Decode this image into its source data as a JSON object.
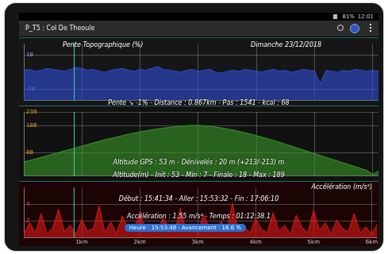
{
  "screen": {
    "battery": "81%",
    "time": "12:01",
    "app_title": "P_T5 : Col De Theoule"
  },
  "cursor": {
    "x": 0.867,
    "label": "Heure : 15:53:48 - Avancement : 16.6 %"
  },
  "chart_data": [
    {
      "type": "area",
      "title": "Pente Topographique (%)",
      "subtitle": "Dimanche 23/12/2018",
      "annotations": [
        "Pente ↘ -1% - Distance : 0.867km - Pas : 1541 - kcal : 68"
      ],
      "x": [
        0,
        0.1,
        0.2,
        0.3,
        0.4,
        0.5,
        0.6,
        0.7,
        0.8,
        0.9,
        1,
        1.1,
        1.2,
        1.3,
        1.4,
        1.5,
        1.6,
        1.7,
        1.8,
        1.9,
        2,
        2.1,
        2.2,
        2.3,
        2.4,
        2.5,
        2.6,
        2.7,
        2.8,
        2.9,
        3,
        3.1,
        3.2,
        3.3,
        3.4,
        3.5,
        3.6,
        3.7,
        3.8,
        3.9,
        4,
        4.1,
        4.2,
        4.3,
        4.4,
        4.5,
        4.6,
        4.7,
        4.8,
        4.9,
        5,
        5.1,
        5.2,
        5.3,
        5.4,
        5.5,
        5.6,
        5.7,
        5.8,
        5.9,
        6,
        6.1
      ],
      "values": [
        2,
        3,
        1,
        2,
        4,
        3,
        2,
        1,
        3,
        5,
        4,
        2,
        3,
        1,
        0,
        2,
        3,
        4,
        2,
        1,
        3,
        2,
        4,
        6,
        3,
        2,
        1,
        0,
        2,
        3,
        1,
        2,
        3,
        0,
        -1,
        1,
        2,
        1,
        3,
        2,
        1,
        0,
        2,
        3,
        1,
        2,
        0,
        1,
        3,
        2,
        1,
        -12,
        2,
        1,
        0,
        2,
        1,
        3,
        2,
        1,
        2,
        1
      ],
      "color": "#2f4fd8",
      "xlim": [
        0,
        6.1
      ],
      "xticks": [
        {
          "value": 1,
          "label": "1km"
        },
        {
          "value": 2,
          "label": "2km"
        },
        {
          "value": 3,
          "label": "3km"
        },
        {
          "value": 4,
          "label": "4km"
        },
        {
          "value": 5,
          "label": "5km"
        },
        {
          "value": 6,
          "label": "6km"
        }
      ],
      "ylim": [
        -30,
        30
      ],
      "yticks": [
        -18,
        18
      ],
      "grid": true,
      "tick_labels": "y"
    },
    {
      "type": "area",
      "annotations": [
        "Altitude GPS : 53 m - Dénivelés : 20 m (+213/-213) m",
        "Altitude(m) - Init : 53 - Min : 7 - Finale : 18 - Max : 189"
      ],
      "x": [
        0,
        0.1,
        0.2,
        0.3,
        0.4,
        0.5,
        0.6,
        0.7,
        0.8,
        0.9,
        1,
        1.1,
        1.2,
        1.3,
        1.4,
        1.5,
        1.6,
        1.7,
        1.8,
        1.9,
        2,
        2.1,
        2.2,
        2.3,
        2.4,
        2.5,
        2.6,
        2.7,
        2.8,
        2.9,
        3,
        3.1,
        3.2,
        3.3,
        3.4,
        3.5,
        3.6,
        3.7,
        3.8,
        3.9,
        4,
        4.1,
        4.2,
        4.3,
        4.4,
        4.5,
        4.6,
        4.7,
        4.8,
        4.9,
        5,
        5.1,
        5.2,
        5.3,
        5.4,
        5.5,
        5.6,
        5.7,
        5.8,
        5.9,
        6,
        6.1
      ],
      "values": [
        53,
        58,
        64,
        70,
        76,
        82,
        88,
        94,
        100,
        106,
        112,
        118,
        124,
        130,
        136,
        141,
        146,
        151,
        156,
        161,
        165,
        169,
        173,
        176,
        179,
        182,
        184,
        186,
        188,
        189,
        189,
        188,
        186,
        183,
        180,
        176,
        172,
        167,
        162,
        157,
        151,
        145,
        139,
        133,
        126,
        119,
        112,
        105,
        98,
        91,
        84,
        77,
        70,
        63,
        56,
        49,
        42,
        35,
        28,
        21,
        7,
        18
      ],
      "color": "#3a9a28",
      "xlim": [
        0,
        6.1
      ],
      "xticks": [
        {
          "value": 1,
          "label": "1km"
        },
        {
          "value": 2,
          "label": "2km"
        },
        {
          "value": 3,
          "label": "3km"
        },
        {
          "value": 4,
          "label": "4km"
        },
        {
          "value": 5,
          "label": "5km"
        },
        {
          "value": 6,
          "label": "6km"
        }
      ],
      "ylim": [
        0,
        239
      ],
      "yticks": [
        88,
        188,
        239
      ],
      "grid": true,
      "tick_labels": "y"
    },
    {
      "type": "area",
      "title": "Accélération (m/s²)",
      "annotations": [
        "Début : 15:41:34 - Aller : 15:53:32 - Fin : 17:06:10",
        "Accélération : 1.55 m/s² - Temps : 01:12:38.1"
      ],
      "x": [
        0,
        0.1,
        0.2,
        0.3,
        0.4,
        0.5,
        0.6,
        0.7,
        0.8,
        0.9,
        1,
        1.1,
        1.2,
        1.3,
        1.4,
        1.5,
        1.6,
        1.7,
        1.8,
        1.9,
        2,
        2.1,
        2.2,
        2.3,
        2.4,
        2.5,
        2.6,
        2.7,
        2.8,
        2.9,
        3,
        3.1,
        3.2,
        3.3,
        3.4,
        3.5,
        3.6,
        3.7,
        3.8,
        3.9,
        4,
        4.1,
        4.2,
        4.3,
        4.4,
        4.5,
        4.6,
        4.7,
        4.8,
        4.9,
        5,
        5.1,
        5.2,
        5.3,
        5.4,
        5.5,
        5.6,
        5.7,
        5.8,
        5.9,
        6,
        6.1
      ],
      "values": [
        0.4,
        1.8,
        0.6,
        2.9,
        0.5,
        1.2,
        3.4,
        0.7,
        1.5,
        0.4,
        2.2,
        0.8,
        1.1,
        3.8,
        0.6,
        1.9,
        0.5,
        2.6,
        1.0,
        0.7,
        3.1,
        0.9,
        1.6,
        0.5,
        2.4,
        1.3,
        0.6,
        3.5,
        0.8,
        1.7,
        0.5,
        2.8,
        1.1,
        0.6,
        2.0,
        0.9,
        4.1,
        0.7,
        1.4,
        0.5,
        2.3,
        1.0,
        0.6,
        3.0,
        0.8,
        1.5,
        0.4,
        2.7,
        1.2,
        0.6,
        3.3,
        0.9,
        1.8,
        0.5,
        2.1,
        1.1,
        0.7,
        2.9,
        0.6,
        1.3,
        0.5,
        1.6
      ],
      "color": "#e01818",
      "xlim": [
        0,
        6.1
      ],
      "xticks": [
        {
          "value": 1,
          "label": "1km"
        },
        {
          "value": 2,
          "label": "2km"
        },
        {
          "value": 3,
          "label": "3km"
        },
        {
          "value": 4,
          "label": "4km"
        },
        {
          "value": 5,
          "label": "5km"
        },
        {
          "value": 6,
          "label": "6km"
        }
      ],
      "ylim": [
        0,
        6
      ],
      "yticks": [
        2,
        4
      ],
      "grid": true
    }
  ]
}
